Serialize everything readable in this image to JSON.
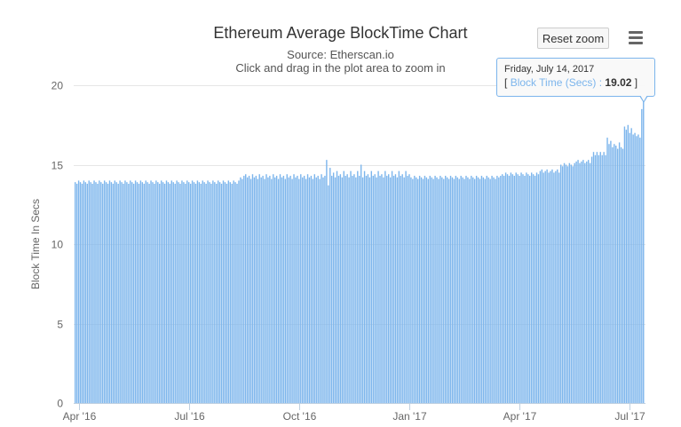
{
  "chart_data": {
    "type": "bar",
    "title": "Ethereum Average BlockTime Chart",
    "subtitle_source": "Source: Etherscan.io",
    "subtitle_hint": "Click and drag in the plot area to zoom in",
    "ylabel": "Block Time In Secs",
    "xlabel": "",
    "ylim": [
      0,
      20
    ],
    "yticks": [
      "0",
      "5",
      "10",
      "15",
      "20"
    ],
    "xtick_labels": [
      "Apr '16",
      "Jul '16",
      "Oct '16",
      "Jan '17",
      "Apr '17",
      "Jul '17"
    ],
    "grid": true,
    "series": [
      {
        "name": "Block Time (Secs)",
        "color": "#7cb5ec",
        "values": [
          13.9,
          13.8,
          14.0,
          13.9,
          13.8,
          14.0,
          13.9,
          13.8,
          14.0,
          13.9,
          13.8,
          14.0,
          13.9,
          13.8,
          14.0,
          13.9,
          13.8,
          14.0,
          13.9,
          13.8,
          14.0,
          13.9,
          13.8,
          14.0,
          13.9,
          13.8,
          14.0,
          13.9,
          13.8,
          14.0,
          13.9,
          13.8,
          14.0,
          13.9,
          13.8,
          14.0,
          13.9,
          13.8,
          14.0,
          13.9,
          13.8,
          14.0,
          13.9,
          13.8,
          14.0,
          13.9,
          13.8,
          14.0,
          13.9,
          13.8,
          14.0,
          13.9,
          13.8,
          14.0,
          13.9,
          13.8,
          14.0,
          13.9,
          13.8,
          14.0,
          13.9,
          13.8,
          14.0,
          13.9,
          13.8,
          14.0,
          13.9,
          13.8,
          14.0,
          13.9,
          13.8,
          14.0,
          13.9,
          13.8,
          14.0,
          13.9,
          13.8,
          14.0,
          13.9,
          13.8,
          14.0,
          13.9,
          13.8,
          14.0,
          13.9,
          13.8,
          14.0,
          13.9,
          13.8,
          14.0,
          13.9,
          13.8,
          14.0,
          13.9,
          13.8,
          14.0,
          14.2,
          14.1,
          14.3,
          14.4,
          14.2,
          14.3,
          14.1,
          14.4,
          14.2,
          14.3,
          14.1,
          14.4,
          14.2,
          14.3,
          14.1,
          14.4,
          14.2,
          14.3,
          14.1,
          14.4,
          14.2,
          14.3,
          14.1,
          14.4,
          14.2,
          14.3,
          14.1,
          14.4,
          14.2,
          14.3,
          14.1,
          14.4,
          14.2,
          14.3,
          14.1,
          14.4,
          14.2,
          14.3,
          14.1,
          14.4,
          14.2,
          14.3,
          14.1,
          14.4,
          14.2,
          14.3,
          14.1,
          14.4,
          14.2,
          14.3,
          15.3,
          13.7,
          14.8,
          14.3,
          14.5,
          14.2,
          14.6,
          14.3,
          14.4,
          14.2,
          14.6,
          14.3,
          14.4,
          14.2,
          14.6,
          14.3,
          14.4,
          14.2,
          14.6,
          14.3,
          15.0,
          14.2,
          14.6,
          14.3,
          14.4,
          14.2,
          14.6,
          14.3,
          14.4,
          14.2,
          14.6,
          14.3,
          14.4,
          14.2,
          14.6,
          14.3,
          14.4,
          14.2,
          14.6,
          14.3,
          14.4,
          14.2,
          14.6,
          14.3,
          14.4,
          14.2,
          14.6,
          14.3,
          14.4,
          14.2,
          14.1,
          14.3,
          14.2,
          14.1,
          14.3,
          14.2,
          14.1,
          14.3,
          14.2,
          14.1,
          14.3,
          14.2,
          14.1,
          14.3,
          14.2,
          14.1,
          14.3,
          14.2,
          14.1,
          14.3,
          14.2,
          14.1,
          14.3,
          14.2,
          14.1,
          14.3,
          14.2,
          14.1,
          14.3,
          14.2,
          14.1,
          14.3,
          14.2,
          14.1,
          14.3,
          14.2,
          14.1,
          14.3,
          14.2,
          14.1,
          14.3,
          14.2,
          14.1,
          14.3,
          14.2,
          14.1,
          14.3,
          14.2,
          14.1,
          14.3,
          14.2,
          14.3,
          14.4,
          14.3,
          14.5,
          14.4,
          14.3,
          14.5,
          14.4,
          14.3,
          14.5,
          14.4,
          14.3,
          14.5,
          14.4,
          14.3,
          14.5,
          14.4,
          14.3,
          14.5,
          14.4,
          14.3,
          14.5,
          14.4,
          14.6,
          14.7,
          14.5,
          14.6,
          14.7,
          14.5,
          14.6,
          14.7,
          14.5,
          14.6,
          14.7,
          14.5,
          15.0,
          14.9,
          15.1,
          15.0,
          14.9,
          15.1,
          15.0,
          14.9,
          15.1,
          15.2,
          15.3,
          15.1,
          15.2,
          15.3,
          15.1,
          15.2,
          15.3,
          15.1,
          15.5,
          15.8,
          15.6,
          15.8,
          15.6,
          15.8,
          15.6,
          15.8,
          15.6,
          16.7,
          16.3,
          16.5,
          16.1,
          16.3,
          16.2,
          16.0,
          16.4,
          16.1,
          16.0,
          17.4,
          17.2,
          17.5,
          17.0,
          17.3,
          16.9,
          17.0,
          16.8,
          16.9,
          16.7,
          18.5,
          19.02
        ]
      }
    ],
    "tooltip": {
      "date": "Friday, July 14, 2017",
      "open_bracket": "[",
      "series_label": "Block Time (Secs) :",
      "value": "19.02",
      "close_bracket": "]"
    }
  },
  "ui": {
    "reset_zoom_label": "Reset zoom",
    "menu_icon": "hamburger-menu-icon"
  }
}
